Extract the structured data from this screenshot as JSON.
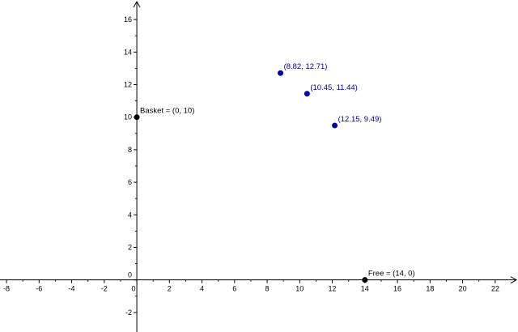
{
  "chart_data": {
    "type": "scatter",
    "xlim": [
      -8.4,
      23.4
    ],
    "ylim": [
      -3.2,
      17.2
    ],
    "grid": false,
    "x_ticks": [
      -8,
      -6,
      -4,
      -2,
      0,
      2,
      4,
      6,
      8,
      10,
      12,
      14,
      16,
      18,
      20,
      22
    ],
    "y_ticks": [
      -2,
      0,
      2,
      4,
      6,
      8,
      10,
      12,
      14,
      16
    ],
    "x_tick_labels": [
      "-8",
      "-6",
      "-4",
      "-2",
      "0",
      "2",
      "4",
      "6",
      "8",
      "10",
      "12",
      "14",
      "16",
      "18",
      "20",
      "22"
    ],
    "y_tick_labels": [
      "-2",
      "0",
      "2",
      "4",
      "6",
      "8",
      "10",
      "12",
      "14",
      "16"
    ],
    "series": [
      {
        "color": "#000000",
        "points": [
          {
            "x": 0,
            "y": 10,
            "label": "Basket = (0, 10)"
          },
          {
            "x": 14,
            "y": 0,
            "label": "Free = (14, 0)"
          }
        ]
      },
      {
        "color": "#0000a0",
        "points": [
          {
            "x": 8.82,
            "y": 12.71,
            "label": "(8.82, 12.71)"
          },
          {
            "x": 10.45,
            "y": 11.44,
            "label": "(10.45, 11.44)"
          },
          {
            "x": 12.15,
            "y": 9.49,
            "label": "(12.15, 9.49)"
          }
        ]
      }
    ],
    "colors": {
      "axis": "#000000",
      "tick_label": "#000000"
    }
  }
}
